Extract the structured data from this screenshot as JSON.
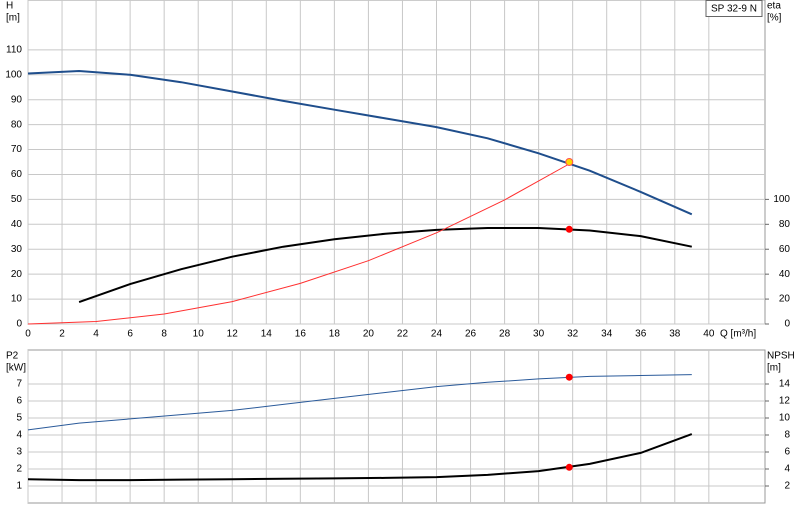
{
  "chart_data": [
    {
      "type": "line",
      "title": "SP 32-9 N",
      "ylabel": [
        "H",
        "[m]"
      ],
      "y2label": [
        "eta",
        "[%]"
      ],
      "xlabel": "Q [m³/h]",
      "xlim": [
        0,
        43.3
      ],
      "xticks": [
        0,
        2,
        4,
        6,
        8,
        10,
        12,
        14,
        16,
        18,
        20,
        22,
        24,
        26,
        28,
        30,
        32,
        34,
        36,
        38,
        40
      ],
      "ylim": [
        0,
        130
      ],
      "yticks": [
        0,
        10,
        20,
        30,
        40,
        50,
        60,
        70,
        80,
        90,
        100,
        110
      ],
      "y2lim": [
        0,
        260
      ],
      "y2ticks": [
        0,
        20,
        40,
        60,
        80,
        100
      ],
      "grid": true,
      "series": [
        {
          "name": "H",
          "color": "#1f4e8c",
          "x": [
            0,
            3,
            6,
            9,
            12,
            15,
            18,
            21,
            24,
            27,
            30,
            33,
            36,
            39
          ],
          "values": [
            100.5,
            101.5,
            100,
            97,
            93.3,
            89.5,
            86,
            82.5,
            79,
            74.5,
            68.5,
            61.5,
            53,
            44
          ]
        },
        {
          "name": "eta",
          "color": "#000000",
          "axis": "y2",
          "x": [
            3,
            6,
            9,
            12,
            15,
            18,
            21,
            24,
            27,
            30,
            33,
            36,
            39
          ],
          "values": [
            17.6,
            32,
            44,
            54,
            62,
            68,
            72.5,
            75.5,
            77,
            77,
            75,
            70.5,
            62
          ]
        },
        {
          "name": "system",
          "color": "#ff3030",
          "x": [
            0,
            4,
            8,
            12,
            16,
            20,
            24,
            28,
            32
          ],
          "values": [
            0,
            1,
            4,
            9,
            16.3,
            25.4,
            36.6,
            49.8,
            65
          ]
        }
      ],
      "markers": [
        {
          "x": 31.8,
          "y": 65,
          "color": "#ffd700"
        },
        {
          "x": 31.8,
          "y": 76,
          "color": "#ff0000",
          "axis": "y2"
        }
      ]
    },
    {
      "type": "line",
      "ylabel": [
        "P2",
        "[kW]"
      ],
      "y2label": [
        "NPSH",
        "[m]"
      ],
      "xlim": [
        0,
        43.3
      ],
      "xticks": [
        0,
        2,
        4,
        6,
        8,
        10,
        12,
        14,
        16,
        18,
        20,
        22,
        24,
        26,
        28,
        30,
        32,
        34,
        36,
        38,
        40
      ],
      "ylim": [
        0,
        9
      ],
      "yticks": [
        1,
        2,
        3,
        4,
        5,
        6,
        7
      ],
      "y2lim": [
        0,
        18
      ],
      "y2ticks": [
        2,
        4,
        6,
        8,
        10,
        12,
        14
      ],
      "grid": true,
      "series": [
        {
          "name": "P2",
          "color": "#2a5a9a",
          "x": [
            0,
            3,
            6,
            9,
            12,
            15,
            18,
            21,
            24,
            27,
            30,
            33,
            36,
            39
          ],
          "values": [
            4.3,
            4.7,
            4.95,
            5.2,
            5.45,
            5.8,
            6.15,
            6.5,
            6.85,
            7.1,
            7.3,
            7.45,
            7.5,
            7.55
          ]
        },
        {
          "name": "NPSH",
          "color": "#000000",
          "axis": "y2",
          "x": [
            0,
            3,
            6,
            9,
            12,
            15,
            18,
            21,
            24,
            27,
            30,
            33,
            36,
            39
          ],
          "values": [
            2.8,
            2.7,
            2.7,
            2.75,
            2.8,
            2.85,
            2.9,
            2.95,
            3.05,
            3.3,
            3.75,
            4.6,
            5.9,
            8.1
          ]
        }
      ],
      "markers": [
        {
          "x": 31.8,
          "y": 7.4,
          "color": "#ff0000"
        },
        {
          "x": 31.8,
          "y": 4.2,
          "color": "#ff0000",
          "axis": "y2"
        }
      ]
    }
  ]
}
